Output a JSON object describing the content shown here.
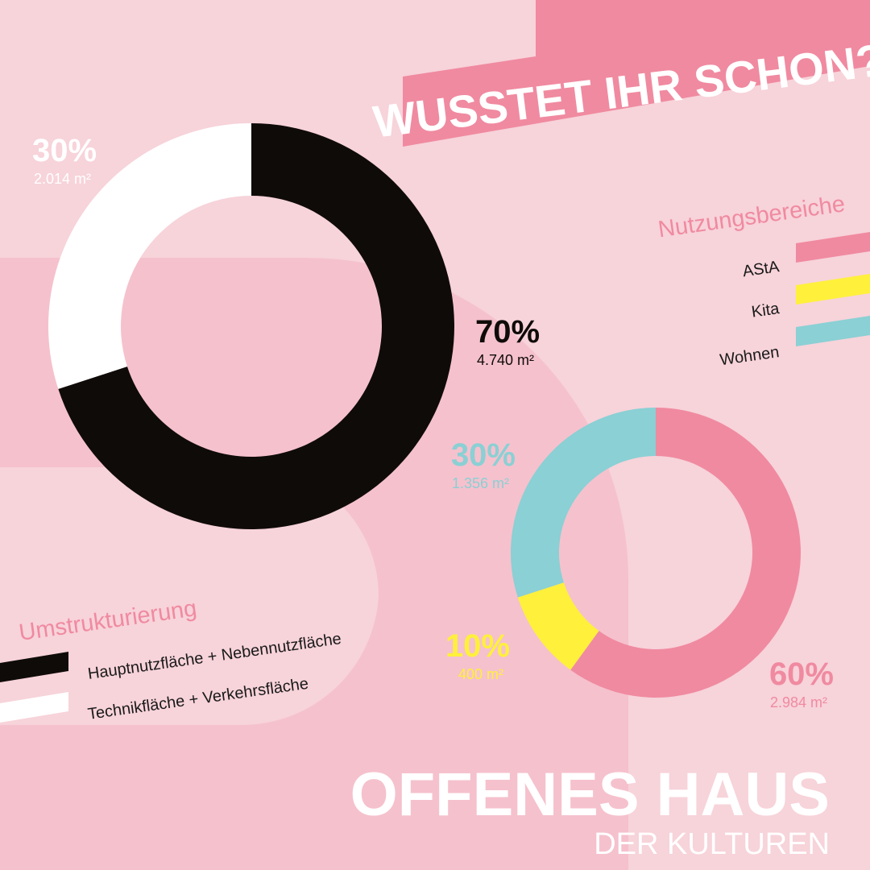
{
  "header": {
    "title": "WUSSTET IHR SCHON?"
  },
  "chart_data": [
    {
      "type": "donut",
      "title": "Umstrukturierung",
      "categories": [
        "Hauptnutzfläche + Nebennutzfläche",
        "Technikfläche + Verkehrsfläche"
      ],
      "values": [
        70,
        30
      ],
      "value_labels": [
        "70%",
        "30%"
      ],
      "areas": [
        4740,
        2014
      ],
      "area_labels": [
        "4.740 m²",
        "2.014 m²"
      ],
      "colors": [
        "#0f0b09",
        "#ffffff"
      ],
      "label_colors": [
        "#0f0b09",
        "#ffffff"
      ]
    },
    {
      "type": "donut",
      "title": "Nutzungsbereiche",
      "categories": [
        "AStA",
        "Kita",
        "Wohnen"
      ],
      "values": [
        60,
        10,
        30
      ],
      "value_labels": [
        "60%",
        "10%",
        "30%"
      ],
      "areas": [
        2984,
        400,
        1356
      ],
      "area_labels": [
        "2.984 m²",
        "400 m²",
        "1.356 m²"
      ],
      "colors": [
        "#f08aa0",
        "#fff03c",
        "#8ad0d4"
      ],
      "label_colors": [
        "#f08aa0",
        "#fff03c",
        "#8ad0d4"
      ]
    }
  ],
  "logo": {
    "name": "OFFENES HAUS",
    "subtitle": "DER KULTUREN"
  }
}
